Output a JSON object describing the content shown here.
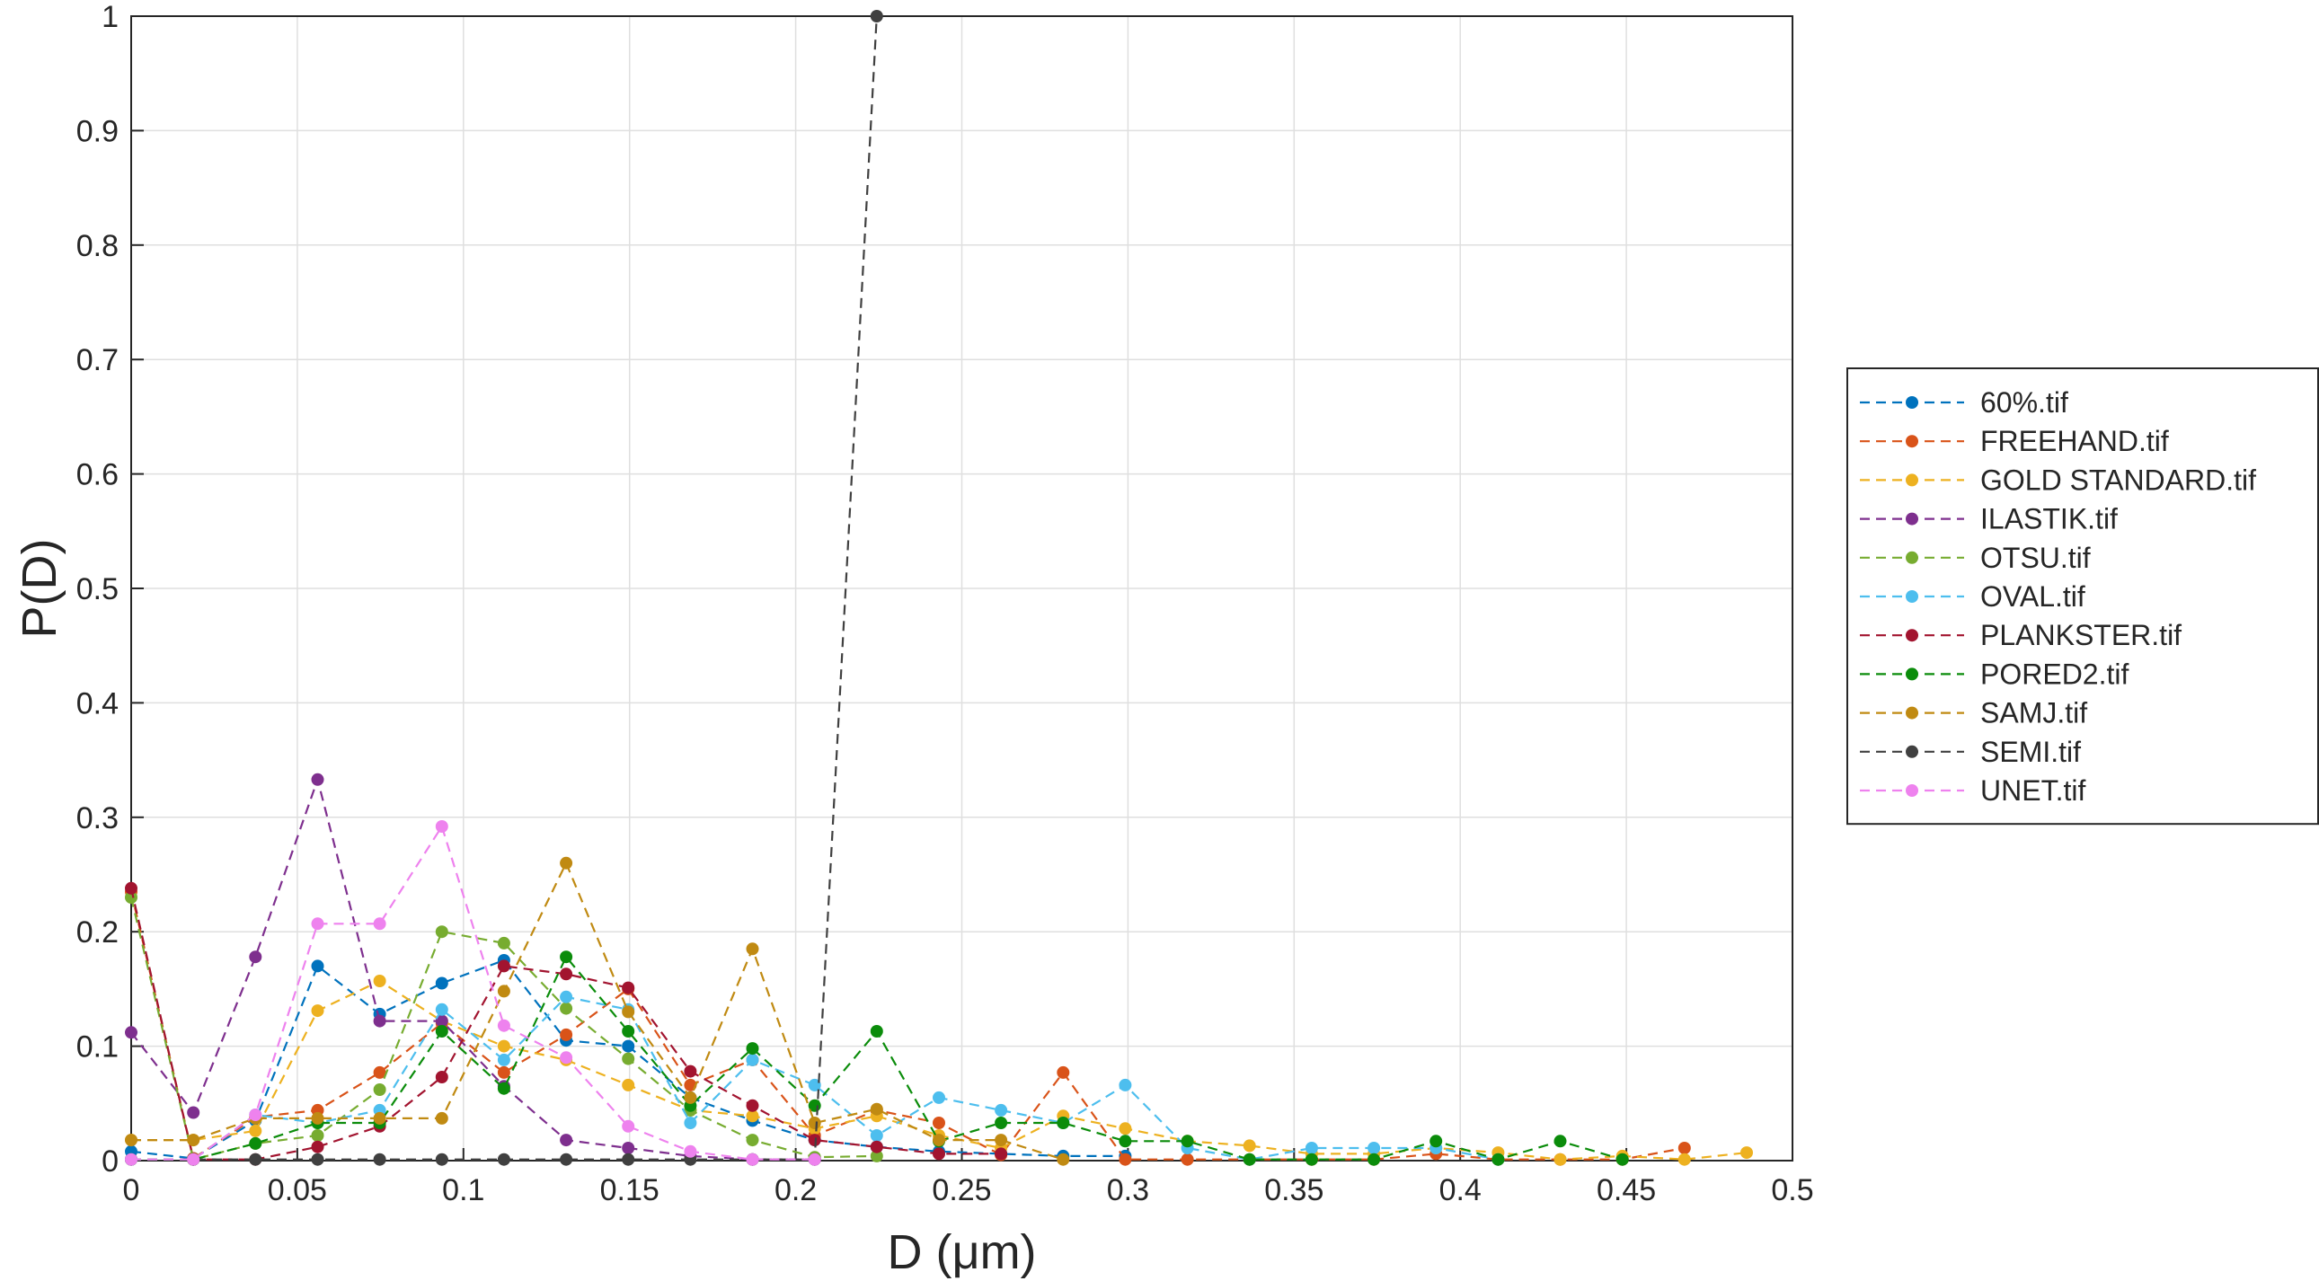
{
  "chart_data": {
    "type": "line",
    "xlabel": "D  (μm)",
    "ylabel": "P(D)",
    "xlim": [
      0,
      0.5
    ],
    "ylim": [
      0,
      1
    ],
    "xticks": [
      "0",
      "0.05",
      "0.1",
      "0.15",
      "0.2",
      "0.25",
      "0.3",
      "0.35",
      "0.4",
      "0.45",
      "0.5"
    ],
    "yticks": [
      "0",
      "0.1",
      "0.2",
      "0.3",
      "0.4",
      "0.5",
      "0.6",
      "0.7",
      "0.8",
      "0.9",
      "1"
    ],
    "grid": true,
    "legend_position": "right",
    "series": [
      {
        "name": "60%.tif",
        "color": "#0072BD",
        "points": [
          [
            0,
            0.008
          ],
          [
            0.0187,
            0.002
          ],
          [
            0.0374,
            0.035
          ],
          [
            0.0561,
            0.17
          ],
          [
            0.0748,
            0.128
          ],
          [
            0.0935,
            0.155
          ],
          [
            0.1122,
            0.175
          ],
          [
            0.1309,
            0.105
          ],
          [
            0.1496,
            0.1
          ],
          [
            0.1683,
            0.055
          ],
          [
            0.187,
            0.035
          ],
          [
            0.2057,
            0.018
          ],
          [
            0.2244,
            0.012
          ],
          [
            0.2431,
            0.008
          ],
          [
            0.2618,
            0.006
          ],
          [
            0.2805,
            0.004
          ],
          [
            0.2992,
            0.004
          ]
        ]
      },
      {
        "name": "FREEHAND.tif",
        "color": "#D95319",
        "points": [
          [
            0,
            0.235
          ],
          [
            0.0187,
            0.002
          ],
          [
            0.0374,
            0.038
          ],
          [
            0.0561,
            0.044
          ],
          [
            0.0748,
            0.077
          ],
          [
            0.0935,
            0.12
          ],
          [
            0.1122,
            0.077
          ],
          [
            0.1309,
            0.11
          ],
          [
            0.1496,
            0.15
          ],
          [
            0.1683,
            0.066
          ],
          [
            0.187,
            0.088
          ],
          [
            0.2057,
            0.022
          ],
          [
            0.2244,
            0.044
          ],
          [
            0.2431,
            0.033
          ],
          [
            0.2618,
            0.005
          ],
          [
            0.2805,
            0.077
          ],
          [
            0.2992,
            0.001
          ],
          [
            0.3179,
            0.001
          ],
          [
            0.3366,
            0.001
          ],
          [
            0.3553,
            0.001
          ],
          [
            0.374,
            0.001
          ],
          [
            0.3927,
            0.006
          ],
          [
            0.4114,
            0.001
          ],
          [
            0.4301,
            0.001
          ],
          [
            0.4488,
            0.001
          ],
          [
            0.4675,
            0.011
          ]
        ]
      },
      {
        "name": "GOLD STANDARD.tif",
        "color": "#EDB120",
        "points": [
          [
            0,
            0.018
          ],
          [
            0.0187,
            0.018
          ],
          [
            0.0374,
            0.026
          ],
          [
            0.0561,
            0.131
          ],
          [
            0.0748,
            0.157
          ],
          [
            0.0935,
            0.122
          ],
          [
            0.1122,
            0.1
          ],
          [
            0.1309,
            0.088
          ],
          [
            0.1496,
            0.066
          ],
          [
            0.1683,
            0.044
          ],
          [
            0.187,
            0.039
          ],
          [
            0.2057,
            0.028
          ],
          [
            0.2244,
            0.039
          ],
          [
            0.2431,
            0.022
          ],
          [
            0.2618,
            0.011
          ],
          [
            0.2805,
            0.039
          ],
          [
            0.2992,
            0.028
          ],
          [
            0.3179,
            0.017
          ],
          [
            0.3366,
            0.013
          ],
          [
            0.3553,
            0.006
          ],
          [
            0.374,
            0.006
          ],
          [
            0.3927,
            0.011
          ],
          [
            0.4114,
            0.007
          ],
          [
            0.4301,
            0.001
          ],
          [
            0.4488,
            0.004
          ],
          [
            0.4675,
            0.001
          ],
          [
            0.4862,
            0.007
          ]
        ]
      },
      {
        "name": "ILASTIK.tif",
        "color": "#7E2F8E",
        "points": [
          [
            0,
            0.112
          ],
          [
            0.0187,
            0.042
          ],
          [
            0.0374,
            0.178
          ],
          [
            0.0561,
            0.333
          ],
          [
            0.0748,
            0.122
          ],
          [
            0.0935,
            0.122
          ],
          [
            0.1122,
            0.065
          ],
          [
            0.1309,
            0.018
          ],
          [
            0.1496,
            0.011
          ],
          [
            0.1683,
            0.004
          ],
          [
            0.187,
            0.001
          ],
          [
            0.2057,
            0.001
          ]
        ]
      },
      {
        "name": "OTSU.tif",
        "color": "#77AC30",
        "points": [
          [
            0,
            0.23
          ],
          [
            0.0187,
            0.001
          ],
          [
            0.0374,
            0.015
          ],
          [
            0.0561,
            0.022
          ],
          [
            0.0748,
            0.062
          ],
          [
            0.0935,
            0.2
          ],
          [
            0.1122,
            0.19
          ],
          [
            0.1309,
            0.133
          ],
          [
            0.1496,
            0.089
          ],
          [
            0.1683,
            0.044
          ],
          [
            0.187,
            0.018
          ],
          [
            0.2057,
            0.003
          ],
          [
            0.2244,
            0.004
          ]
        ]
      },
      {
        "name": "OVAL.tif",
        "color": "#4DBEEE",
        "points": [
          [
            0,
            0.001
          ],
          [
            0.0187,
            0.001
          ],
          [
            0.0374,
            0.04
          ],
          [
            0.0561,
            0.033
          ],
          [
            0.0748,
            0.044
          ],
          [
            0.0935,
            0.132
          ],
          [
            0.1122,
            0.088
          ],
          [
            0.1309,
            0.143
          ],
          [
            0.1496,
            0.132
          ],
          [
            0.1683,
            0.033
          ],
          [
            0.187,
            0.088
          ],
          [
            0.2057,
            0.066
          ],
          [
            0.2244,
            0.022
          ],
          [
            0.2431,
            0.055
          ],
          [
            0.2618,
            0.044
          ],
          [
            0.2805,
            0.033
          ],
          [
            0.2992,
            0.066
          ],
          [
            0.3179,
            0.011
          ],
          [
            0.3366,
            0.001
          ],
          [
            0.3553,
            0.011
          ],
          [
            0.374,
            0.011
          ],
          [
            0.3927,
            0.011
          ],
          [
            0.4114,
            0.001
          ]
        ]
      },
      {
        "name": "PLANKSTER.tif",
        "color": "#A2142F",
        "points": [
          [
            0,
            0.238
          ],
          [
            0.0187,
            0.001
          ],
          [
            0.0374,
            0.001
          ],
          [
            0.0561,
            0.012
          ],
          [
            0.0748,
            0.03
          ],
          [
            0.0935,
            0.073
          ],
          [
            0.1122,
            0.17
          ],
          [
            0.1309,
            0.163
          ],
          [
            0.1496,
            0.151
          ],
          [
            0.1683,
            0.078
          ],
          [
            0.187,
            0.048
          ],
          [
            0.2057,
            0.018
          ],
          [
            0.2244,
            0.012
          ],
          [
            0.2431,
            0.006
          ],
          [
            0.2618,
            0.006
          ]
        ]
      },
      {
        "name": "PORED2.tif",
        "color": "#0B8C0B",
        "points": [
          [
            0,
            0.001
          ],
          [
            0.0187,
            0.001
          ],
          [
            0.0374,
            0.015
          ],
          [
            0.0561,
            0.033
          ],
          [
            0.0748,
            0.033
          ],
          [
            0.0935,
            0.113
          ],
          [
            0.1122,
            0.063
          ],
          [
            0.1309,
            0.178
          ],
          [
            0.1496,
            0.113
          ],
          [
            0.1683,
            0.048
          ],
          [
            0.187,
            0.098
          ],
          [
            0.2057,
            0.048
          ],
          [
            0.2244,
            0.113
          ],
          [
            0.2431,
            0.017
          ],
          [
            0.2618,
            0.033
          ],
          [
            0.2805,
            0.033
          ],
          [
            0.2992,
            0.017
          ],
          [
            0.3179,
            0.017
          ],
          [
            0.3366,
            0.001
          ],
          [
            0.3553,
            0.001
          ],
          [
            0.374,
            0.001
          ],
          [
            0.3927,
            0.017
          ],
          [
            0.4114,
            0.001
          ],
          [
            0.4301,
            0.017
          ],
          [
            0.4488,
            0.001
          ]
        ]
      },
      {
        "name": "SAMJ.tif",
        "color": "#C08A12",
        "points": [
          [
            0,
            0.018
          ],
          [
            0.0187,
            0.018
          ],
          [
            0.0374,
            0.037
          ],
          [
            0.0561,
            0.037
          ],
          [
            0.0748,
            0.037
          ],
          [
            0.0935,
            0.037
          ],
          [
            0.1122,
            0.148
          ],
          [
            0.1309,
            0.26
          ],
          [
            0.1496,
            0.13
          ],
          [
            0.1683,
            0.055
          ],
          [
            0.187,
            0.185
          ],
          [
            0.2057,
            0.033
          ],
          [
            0.2244,
            0.045
          ],
          [
            0.2431,
            0.018
          ],
          [
            0.2618,
            0.018
          ],
          [
            0.2805,
            0.001
          ]
        ]
      },
      {
        "name": "SEMI.tif",
        "color": "#404040",
        "points": [
          [
            0,
            0.001
          ],
          [
            0.0187,
            0.001
          ],
          [
            0.0374,
            0.001
          ],
          [
            0.0561,
            0.001
          ],
          [
            0.0748,
            0.001
          ],
          [
            0.0935,
            0.001
          ],
          [
            0.1122,
            0.001
          ],
          [
            0.1309,
            0.001
          ],
          [
            0.1496,
            0.001
          ],
          [
            0.1683,
            0.001
          ],
          [
            0.187,
            0.001
          ],
          [
            0.2057,
            0.001
          ],
          [
            0.2244,
            1.0
          ]
        ]
      },
      {
        "name": "UNET.tif",
        "color": "#EE82EE",
        "points": [
          [
            0,
            0.001
          ],
          [
            0.0187,
            0.001
          ],
          [
            0.0374,
            0.04
          ],
          [
            0.0561,
            0.207
          ],
          [
            0.0748,
            0.207
          ],
          [
            0.0935,
            0.292
          ],
          [
            0.1122,
            0.118
          ],
          [
            0.1309,
            0.09
          ],
          [
            0.1496,
            0.03
          ],
          [
            0.1683,
            0.008
          ],
          [
            0.187,
            0.001
          ],
          [
            0.2057,
            0.001
          ]
        ]
      }
    ]
  }
}
